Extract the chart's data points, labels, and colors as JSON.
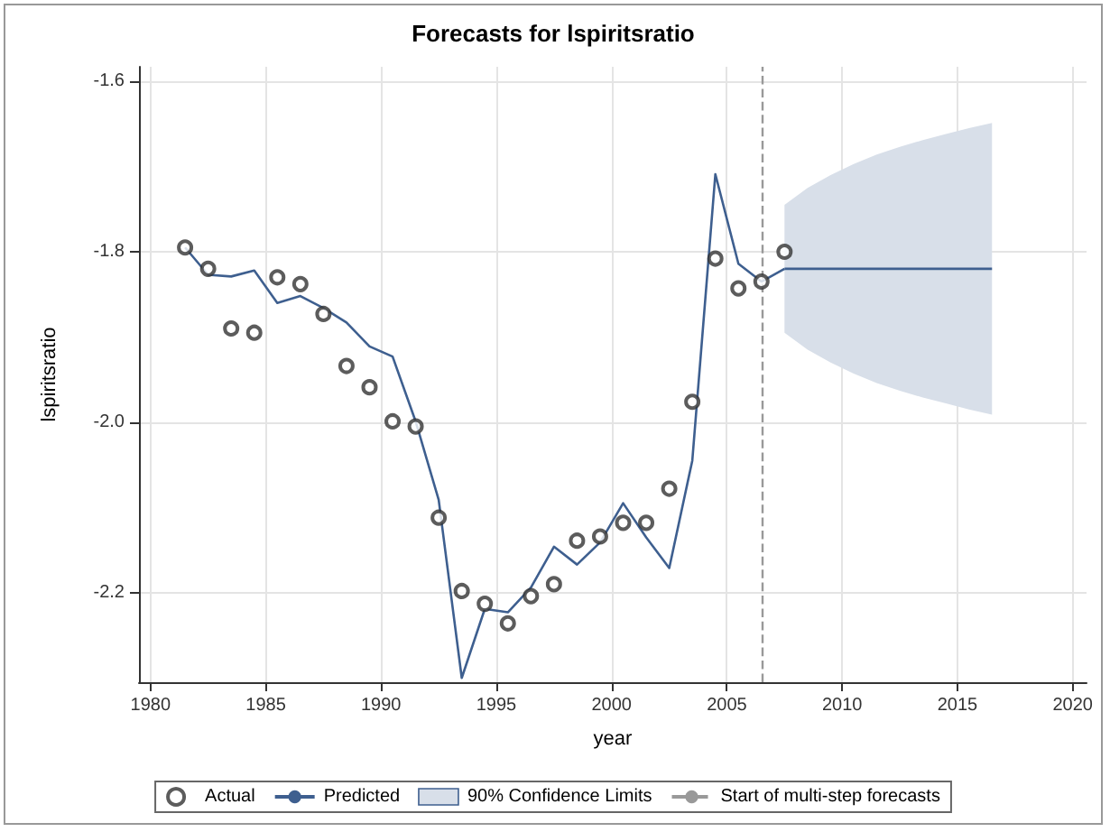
{
  "chart_data": {
    "type": "line",
    "title": "Forecasts for lspiritsratio",
    "xlabel": "year",
    "ylabel": "lspiritsratio",
    "xlim": [
      1979.5,
      2020.6
    ],
    "xticks": [
      1980,
      1985,
      1990,
      1995,
      2000,
      2005,
      2010,
      2015,
      2020
    ],
    "ylim": [
      -2.305,
      -1.583
    ],
    "yticks": [
      {
        "value": -2.2,
        "label": "-2.2"
      },
      {
        "value": -2.0,
        "label": "-2.0"
      },
      {
        "value": -1.8,
        "label": "-1.8"
      },
      {
        "value": -1.6,
        "label": "-1.6"
      }
    ],
    "grid": true,
    "legend": "bottom",
    "series": [
      {
        "name": "Actual",
        "type": "scatter",
        "marker": "circle",
        "color": "#333333",
        "x": [
          1981.5,
          1982.5,
          1983.5,
          1984.5,
          1985.5,
          1986.5,
          1987.5,
          1988.5,
          1989.5,
          1990.5,
          1991.5,
          1992.5,
          1993.5,
          1994.5,
          1995.5,
          1996.5,
          1997.5,
          1998.5,
          1999.5,
          2000.5,
          2001.5,
          2002.5,
          2003.5,
          2004.5,
          2005.5,
          2006.5,
          2007.5
        ],
        "values": [
          -1.795,
          -1.82,
          -1.89,
          -1.895,
          -1.83,
          -1.838,
          -1.873,
          -1.934,
          -1.959,
          -1.999,
          -2.005,
          -2.112,
          -2.198,
          -2.213,
          -2.236,
          -2.204,
          -2.19,
          -2.139,
          -2.134,
          -2.118,
          -2.118,
          -2.078,
          -1.976,
          -1.808,
          -1.843,
          -1.835,
          -1.8
        ]
      },
      {
        "name": "Predicted",
        "type": "line",
        "marker": "none",
        "line_style": "solid",
        "color": "#3e5f8f",
        "x": [
          1981.5,
          1982.5,
          1983.5,
          1984.5,
          1985.5,
          1986.5,
          1987.5,
          1988.5,
          1989.5,
          1990.5,
          1991.5,
          1992.5,
          1993.5,
          1994.5,
          1995.5,
          1996.5,
          1997.5,
          1998.5,
          1999.5,
          2000.5,
          2001.5,
          2002.5,
          2003.5,
          2004.5,
          2005.5,
          2006.5,
          2007.5
        ],
        "values": [
          -1.795,
          -1.827,
          -1.829,
          -1.822,
          -1.86,
          -1.852,
          -1.866,
          -1.883,
          -1.911,
          -1.923,
          -1.999,
          -2.091,
          -2.3,
          -2.219,
          -2.223,
          -2.194,
          -2.146,
          -2.167,
          -2.141,
          -2.095,
          -2.135,
          -2.171,
          -2.045,
          -1.709,
          -1.814,
          -1.835,
          -1.82
        ]
      },
      {
        "name": "90% Confidence Limits",
        "color": "#3e5f8f",
        "x": [
          2007.5,
          2008.5,
          2009.5,
          2010.5,
          2011.5,
          2012.5,
          2013.5,
          2014.5,
          2015.5,
          2016.5
        ],
        "values": [
          -1.82,
          -1.82,
          -1.82,
          -1.82,
          -1.82,
          -1.82,
          -1.82,
          -1.82,
          -1.82,
          -1.82
        ],
        "lower": [
          -1.895,
          -1.915,
          -1.93,
          -1.943,
          -1.954,
          -1.963,
          -1.971,
          -1.978,
          -1.985,
          -1.991
        ],
        "upper": [
          -1.745,
          -1.725,
          -1.71,
          -1.697,
          -1.686,
          -1.677,
          -1.669,
          -1.662,
          -1.655,
          -1.649
        ]
      }
    ],
    "ref_lines": [
      {
        "axis": "x",
        "value": 2006.5,
        "label": "Start of multi-step forecasts",
        "color": "#999999",
        "line_style": "dashed"
      }
    ]
  }
}
